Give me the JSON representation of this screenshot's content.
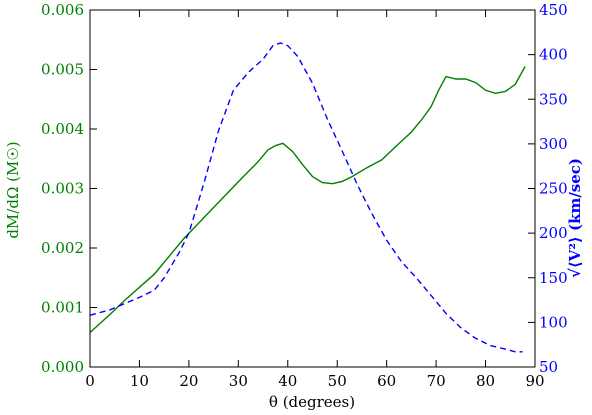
{
  "chart_data": {
    "type": "line",
    "title": "",
    "xlabel": "θ (degrees)",
    "ylabel_left": "dM/dΩ (M☉)",
    "ylabel_right": "√⟨V²⟩ (km/sec)",
    "xlim": [
      0,
      90
    ],
    "ylim_left": [
      0.0,
      0.006
    ],
    "ylim_right": [
      50,
      450
    ],
    "x_ticks": [
      "0",
      "10",
      "20",
      "30",
      "40",
      "50",
      "60",
      "70",
      "80",
      "90"
    ],
    "y_left_ticks": [
      "0.000",
      "0.001",
      "0.002",
      "0.003",
      "0.004",
      "0.005",
      "0.006"
    ],
    "y_right_ticks": [
      "50",
      "100",
      "150",
      "200",
      "250",
      "300",
      "350",
      "400",
      "450"
    ],
    "grid": false,
    "legend": "none",
    "colors": {
      "left_axis": "#008000",
      "right_axis": "#0000ff",
      "frame": "#000000"
    },
    "series": [
      {
        "axis": "left",
        "style": "solid",
        "color": "#008000",
        "x": [
          0,
          4,
          7,
          10,
          13,
          16,
          19,
          22,
          25,
          28,
          31,
          34,
          36,
          37.5,
          39,
          41,
          43,
          45,
          47,
          49,
          51,
          53,
          56,
          59,
          62,
          65,
          67,
          69,
          70.5,
          72,
          74,
          76,
          78,
          80,
          82,
          84,
          86,
          88
        ],
        "y": [
          0.00058,
          0.00088,
          0.00112,
          0.00134,
          0.00156,
          0.00186,
          0.00216,
          0.00242,
          0.00268,
          0.00294,
          0.0032,
          0.00345,
          0.00365,
          0.00372,
          0.00376,
          0.00362,
          0.0034,
          0.0032,
          0.0031,
          0.00308,
          0.00312,
          0.0032,
          0.00335,
          0.00348,
          0.00372,
          0.00395,
          0.00415,
          0.00438,
          0.00465,
          0.00488,
          0.00484,
          0.00484,
          0.00478,
          0.00465,
          0.0046,
          0.00463,
          0.00475,
          0.00505
        ]
      },
      {
        "axis": "right",
        "style": "dashed",
        "color": "#0000ff",
        "x": [
          0,
          4,
          7,
          10,
          13,
          15,
          18,
          20,
          23,
          26,
          29,
          32,
          35,
          37,
          38.5,
          40,
          42,
          45,
          48,
          51,
          54,
          57,
          60,
          63,
          66,
          69,
          72,
          75,
          78,
          81,
          84,
          86,
          87.5
        ],
        "y": [
          108,
          114,
          121,
          128,
          136,
          150,
          178,
          200,
          255,
          315,
          360,
          380,
          395,
          410,
          413,
          410,
          398,
          368,
          328,
          292,
          255,
          222,
          192,
          168,
          150,
          130,
          110,
          94,
          82,
          74,
          70,
          67,
          67
        ]
      }
    ]
  }
}
